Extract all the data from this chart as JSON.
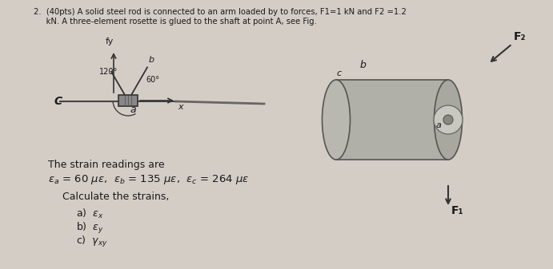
{
  "background_color": "#d4cdc6",
  "title_line1": "2.  (40pts) A solid steel rod is connected to an arm loaded by to forces, F1=1 kN and F2 =1.2",
  "title_line2": "     kN. A three-element rosette is glued to the shaft at point A, see Fig.",
  "strain_readings_label": "The strain readings are",
  "calculate_text": "Calculate the strains,",
  "text_color": "#1a1a1a",
  "font_size_body": 9,
  "font_size_eq": 10
}
